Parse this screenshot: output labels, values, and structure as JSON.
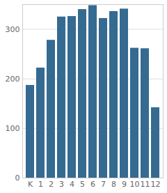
{
  "chart_data": {
    "type": "bar",
    "categories": [
      "K",
      "1",
      "2",
      "3",
      "4",
      "5",
      "6",
      "7",
      "8",
      "9",
      "10",
      "11",
      "12"
    ],
    "values": [
      187,
      222,
      278,
      325,
      326,
      340,
      348,
      322,
      336,
      341,
      262,
      261,
      142
    ],
    "color": "#356a91",
    "ylim": [
      0,
      350
    ],
    "yticks": [
      0,
      100,
      200,
      300
    ],
    "grid": true
  }
}
